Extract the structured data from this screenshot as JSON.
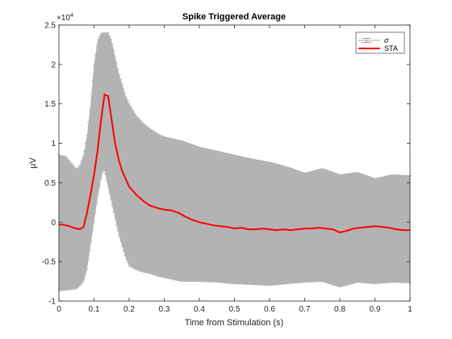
{
  "chart_data": {
    "type": "line",
    "title": "Spike Triggered Average",
    "xlabel": "Time from Stimulation (s)",
    "ylabel": "μV",
    "y_exponent_label": "×10",
    "y_exponent_power": "4",
    "xlim": [
      0,
      1
    ],
    "ylim": [
      -10000,
      25000
    ],
    "x_ticks": [
      0,
      0.1,
      0.2,
      0.3,
      0.4,
      0.5,
      0.6,
      0.7,
      0.8,
      0.9,
      1
    ],
    "x_tick_labels": [
      "0",
      "0.1",
      "0.2",
      "0.3",
      "0.4",
      "0.5",
      "0.6",
      "0.7",
      "0.8",
      "0.9",
      "1"
    ],
    "y_ticks": [
      -10000,
      -5000,
      0,
      5000,
      10000,
      15000,
      20000,
      25000
    ],
    "y_tick_labels": [
      "-1",
      "-0.5",
      "0",
      "0.5",
      "1",
      "1.5",
      "2",
      "2.5"
    ],
    "grid": false,
    "legend": {
      "placement": "top-right",
      "entries": [
        "σ",
        "STA"
      ]
    },
    "colors": {
      "sta": "#ff0000",
      "sigma": "#b3b3b3",
      "axis": "#262626"
    },
    "series": [
      {
        "name": "STA",
        "x": [
          0,
          0.01,
          0.02,
          0.03,
          0.04,
          0.05,
          0.06,
          0.07,
          0.08,
          0.09,
          0.1,
          0.11,
          0.12,
          0.13,
          0.14,
          0.15,
          0.16,
          0.17,
          0.18,
          0.19,
          0.2,
          0.22,
          0.24,
          0.26,
          0.28,
          0.3,
          0.32,
          0.34,
          0.36,
          0.38,
          0.4,
          0.42,
          0.44,
          0.46,
          0.48,
          0.5,
          0.52,
          0.54,
          0.56,
          0.58,
          0.6,
          0.62,
          0.64,
          0.66,
          0.68,
          0.7,
          0.72,
          0.74,
          0.76,
          0.78,
          0.8,
          0.82,
          0.84,
          0.86,
          0.88,
          0.9,
          0.92,
          0.94,
          0.96,
          0.98,
          1
        ],
        "values": [
          -300,
          -300,
          -400,
          -500,
          -700,
          -800,
          -900,
          -600,
          1200,
          3500,
          6000,
          9000,
          13000,
          16200,
          16000,
          13000,
          10000,
          8000,
          6500,
          5500,
          4500,
          3500,
          2700,
          2100,
          1800,
          1600,
          1500,
          1200,
          700,
          300,
          0,
          -200,
          -400,
          -500,
          -600,
          -800,
          -700,
          -900,
          -900,
          -800,
          -900,
          -1000,
          -900,
          -1000,
          -900,
          -800,
          -800,
          -700,
          -800,
          -900,
          -1300,
          -1100,
          -800,
          -700,
          -600,
          -500,
          -600,
          -700,
          -900,
          -1000,
          -1000
        ]
      },
      {
        "name": "σ",
        "x": [
          0,
          0.02,
          0.04,
          0.05,
          0.06,
          0.07,
          0.08,
          0.09,
          0.1,
          0.11,
          0.12,
          0.125,
          0.13,
          0.135,
          0.14,
          0.15,
          0.16,
          0.17,
          0.18,
          0.19,
          0.2,
          0.22,
          0.24,
          0.26,
          0.28,
          0.3,
          0.35,
          0.4,
          0.45,
          0.5,
          0.55,
          0.6,
          0.65,
          0.7,
          0.75,
          0.8,
          0.85,
          0.9,
          0.95,
          1
        ],
        "upper": [
          8500,
          8300,
          7200,
          6700,
          7200,
          8500,
          11000,
          15000,
          20000,
          23000,
          23900,
          24000,
          24000,
          24000,
          24000,
          23000,
          21000,
          19000,
          17500,
          16000,
          15000,
          13500,
          12500,
          11800,
          11200,
          10800,
          10300,
          9500,
          9000,
          8500,
          8000,
          7600,
          7000,
          6200,
          6800,
          6000,
          6300,
          5500,
          6000,
          5900
        ],
        "lower": [
          -8700,
          -8600,
          -8500,
          -8400,
          -8000,
          -7500,
          -6000,
          -3000,
          0,
          3000,
          5500,
          6500,
          6500,
          5500,
          4500,
          2500,
          500,
          -1500,
          -3000,
          -4500,
          -5500,
          -6000,
          -6300,
          -6500,
          -6800,
          -7000,
          -7500,
          -7500,
          -7600,
          -7800,
          -7900,
          -8000,
          -7800,
          -7600,
          -7500,
          -8200,
          -7600,
          -7800,
          -7600,
          -7700
        ]
      }
    ]
  }
}
